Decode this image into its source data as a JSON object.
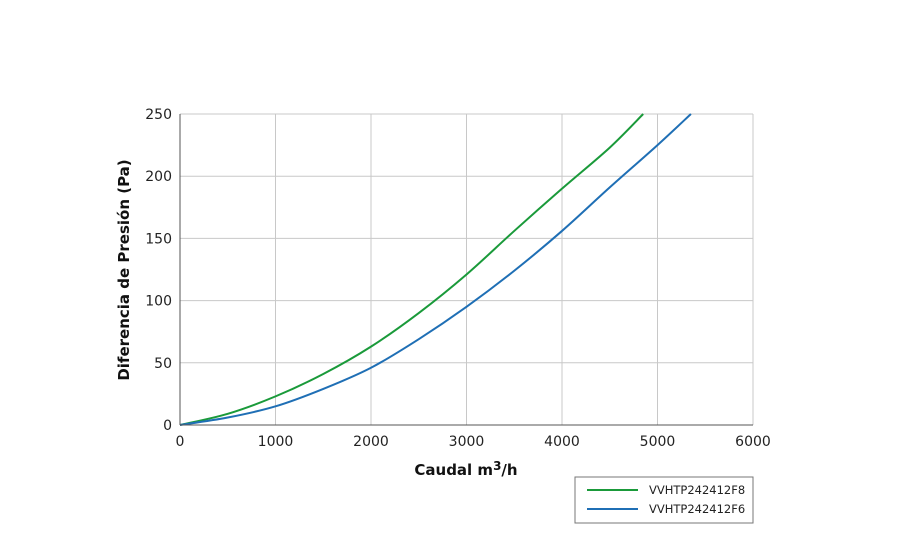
{
  "chart_data": {
    "type": "line",
    "xlabel": "Caudal m",
    "xlabel_sup": "3",
    "xlabel_suffix": "/h",
    "ylabel": "Diferencia de Presión  (Pa)",
    "xlim": [
      0,
      6000
    ],
    "ylim": [
      0,
      250
    ],
    "xticks": [
      0,
      1000,
      2000,
      3000,
      4000,
      5000,
      6000
    ],
    "yticks": [
      0,
      50,
      100,
      150,
      200,
      250
    ],
    "grid": true,
    "legend_position": "bottom-right",
    "series": [
      {
        "name": "VVHTP242412F8",
        "color": "#1a9a3a",
        "x": [
          0,
          500,
          1000,
          1500,
          2000,
          2500,
          3000,
          3500,
          4000,
          4500,
          4850
        ],
        "y": [
          0,
          9,
          23,
          41,
          63,
          90,
          121,
          156,
          190,
          223,
          250
        ]
      },
      {
        "name": "VVHTP242412F6",
        "color": "#1f6fb5",
        "x": [
          0,
          500,
          1000,
          1500,
          2000,
          2500,
          3000,
          3500,
          4000,
          4500,
          5000,
          5350
        ],
        "y": [
          0,
          6,
          15,
          29,
          46,
          69,
          95,
          124,
          156,
          191,
          225,
          250
        ]
      }
    ]
  }
}
